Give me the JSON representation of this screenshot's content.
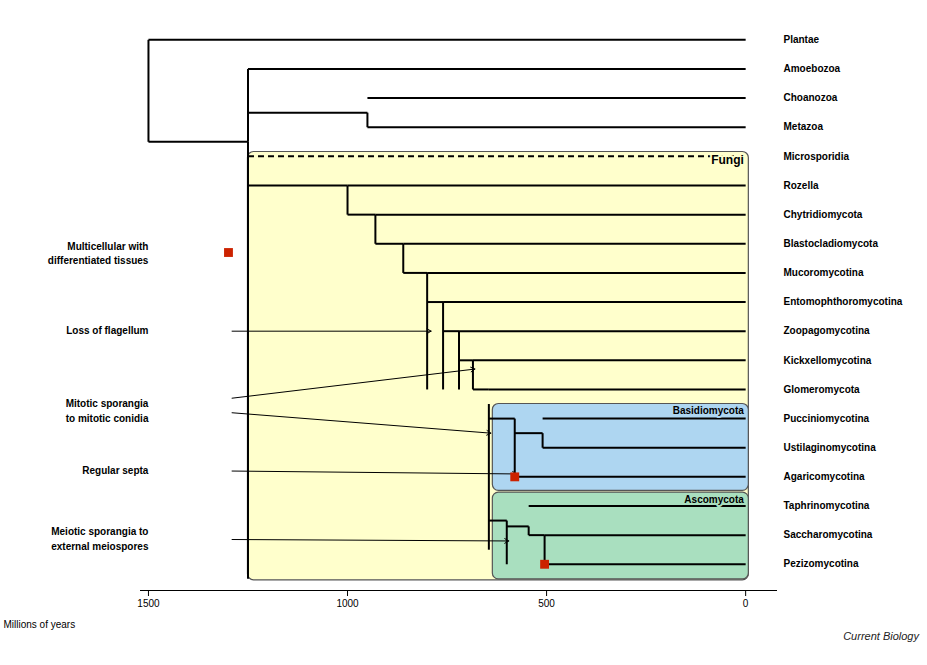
{
  "chart_data": {
    "type": "tree",
    "xlabel": "Millions of years",
    "caption": "Current Biology",
    "xlim": [
      -1520,
      80
    ],
    "xticks": [
      {
        "value": -1500,
        "label": "1500"
      },
      {
        "value": -1000,
        "label": "1000"
      },
      {
        "value": -500,
        "label": "500"
      },
      0
    ],
    "ylim": [
      -0.9,
      18.8
    ],
    "tick_labels": "x",
    "grid": false,
    "categories": [
      "Plantae",
      "Amoebozoa",
      "Choanozoa",
      "Metazoa",
      "Microsporidia",
      "Rozella",
      "Chytridiomycota",
      "Blastocladiomycota",
      "Mucoromycotina",
      "Entomophthoromycotina",
      "Zoopagomycotina",
      "Kickxellomycotina",
      "Glomeromycota",
      "Pucciniomycotina",
      "Ustilaginomycotina",
      "Agaricomycotina",
      "Taphrinomycotina",
      "Saccharomycotina",
      "Pezizomycotina"
    ],
    "y": [
      18,
      17,
      16,
      15,
      14,
      13,
      12,
      11,
      10,
      9,
      8,
      7,
      6,
      5,
      4,
      3,
      2,
      1,
      0
    ],
    "groups": [
      {
        "name": "Fungi",
        "color": "#ffffcc",
        "x1": -1250,
        "x2": 8,
        "y1": -0.55,
        "y2": 14.15
      },
      {
        "name": "Basidiomycota",
        "color": "#aed6f1",
        "x1": -635,
        "x2": 8,
        "y1": 2.52,
        "y2": 5.5
      },
      {
        "name": "Ascomycota",
        "color": "#a9dfbf",
        "x1": -635,
        "x2": 8,
        "y1": -0.52,
        "y2": 2.46
      }
    ],
    "branches": [
      {
        "x1": -1500,
        "x2": -1500,
        "y1": 14.5,
        "y2": 18
      },
      {
        "x1": -1500,
        "x2": 0,
        "y1": 18,
        "y2": 18
      },
      {
        "x1": -1500,
        "x2": -1250,
        "y1": 14.5,
        "y2": 14.5
      },
      {
        "x1": -1250,
        "x2": -1250,
        "y1": 14.5,
        "y2": 17
      },
      {
        "x1": -1250,
        "x2": 0,
        "y1": 17,
        "y2": 17
      },
      {
        "x1": -1250,
        "x2": -950,
        "y1": 15.5,
        "y2": 15.5
      },
      {
        "x1": -950,
        "x2": -950,
        "y1": 15,
        "y2": 15.5
      },
      {
        "x1": -950,
        "x2": 0,
        "y1": 16,
        "y2": 16
      },
      {
        "x1": -950,
        "x2": 0,
        "y1": 15,
        "y2": 15
      },
      {
        "x1": -1250,
        "x2": -1250,
        "y1": -0.5,
        "y2": 14.5
      },
      {
        "x1": -1250,
        "x2": 0,
        "y1": 14,
        "y2": 14,
        "line_style": "dashed"
      },
      {
        "x1": -1250,
        "x2": -1000,
        "y1": 13,
        "y2": 13
      },
      {
        "x1": -1000,
        "x2": -1000,
        "y1": 12,
        "y2": 13
      },
      {
        "x1": -1000,
        "x2": 0,
        "y1": 13,
        "y2": 13
      },
      {
        "x1": -1000,
        "x2": -930,
        "y1": 12,
        "y2": 12
      },
      {
        "x1": -930,
        "x2": -930,
        "y1": 11,
        "y2": 12
      },
      {
        "x1": -930,
        "x2": 0,
        "y1": 12,
        "y2": 12
      },
      {
        "x1": -930,
        "x2": -860,
        "y1": 11,
        "y2": 11
      },
      {
        "x1": -860,
        "x2": -860,
        "y1": 10,
        "y2": 11
      },
      {
        "x1": -860,
        "x2": 0,
        "y1": 11,
        "y2": 11
      },
      {
        "x1": -860,
        "x2": -800,
        "y1": 10,
        "y2": 10
      },
      {
        "x1": -800,
        "x2": -800,
        "y1": 6,
        "y2": 10
      },
      {
        "x1": -800,
        "x2": 0,
        "y1": 10,
        "y2": 10
      },
      {
        "x1": -800,
        "x2": -760,
        "y1": 9,
        "y2": 9
      },
      {
        "x1": -760,
        "x2": -760,
        "y1": 6,
        "y2": 9
      },
      {
        "x1": -760,
        "x2": 0,
        "y1": 9,
        "y2": 9
      },
      {
        "x1": -760,
        "x2": -720,
        "y1": 8,
        "y2": 8
      },
      {
        "x1": -720,
        "x2": -720,
        "y1": 6,
        "y2": 8
      },
      {
        "x1": -720,
        "x2": 0,
        "y1": 8,
        "y2": 8
      },
      {
        "x1": -720,
        "x2": -685,
        "y1": 7,
        "y2": 7
      },
      {
        "x1": -685,
        "x2": -685,
        "y1": 6,
        "y2": 7
      },
      {
        "x1": -685,
        "x2": 0,
        "y1": 7,
        "y2": 7
      },
      {
        "x1": -685,
        "x2": -645,
        "y1": 6,
        "y2": 6
      },
      {
        "x1": -645,
        "x2": 0,
        "y1": 6,
        "y2": 6
      },
      {
        "x1": -645,
        "x2": -645,
        "y1": 0.5,
        "y2": 5.5
      },
      {
        "x1": -645,
        "x2": -580,
        "y1": 5,
        "y2": 5
      },
      {
        "x1": -580,
        "x2": -580,
        "y1": 3,
        "y2": 5
      },
      {
        "x1": -580,
        "x2": -510,
        "y1": 4.5,
        "y2": 4.5
      },
      {
        "x1": -510,
        "x2": -510,
        "y1": 4,
        "y2": 4.5
      },
      {
        "x1": -510,
        "x2": 0,
        "y1": 5,
        "y2": 5
      },
      {
        "x1": -510,
        "x2": 0,
        "y1": 4,
        "y2": 4
      },
      {
        "x1": -580,
        "x2": 0,
        "y1": 3,
        "y2": 3
      },
      {
        "x1": -645,
        "x2": -600,
        "y1": 1.5,
        "y2": 1.5
      },
      {
        "x1": -600,
        "x2": -600,
        "y1": 0,
        "y2": 1.5
      },
      {
        "x1": -600,
        "x2": -545,
        "y1": 1.3,
        "y2": 1.3
      },
      {
        "x1": -545,
        "x2": -545,
        "y1": 1,
        "y2": 1.3
      },
      {
        "x1": -545,
        "x2": 0,
        "y1": 2,
        "y2": 2
      },
      {
        "x1": -545,
        "x2": -505,
        "y1": 1,
        "y2": 1
      },
      {
        "x1": -505,
        "x2": -505,
        "y1": 0,
        "y2": 1
      },
      {
        "x1": -505,
        "x2": 0,
        "y1": 1,
        "y2": 1
      },
      {
        "x1": -505,
        "x2": 0,
        "y1": 0,
        "y2": 0
      }
    ],
    "markers": {
      "color": "#cc2200",
      "marker": "square",
      "points": [
        {
          "x": -580,
          "y": 3
        },
        {
          "x": -505,
          "y": 0
        },
        {
          "x": -1299,
          "y": 10.7
        }
      ]
    },
    "annotations": [
      {
        "text": "Multicellular with",
        "x": -1490,
        "y": 10.9
      },
      {
        "text": "differentiated tissues",
        "x": -1490,
        "y": 10.4
      },
      {
        "text": "Loss of flagellum",
        "x": -1490,
        "y": 8.0
      },
      {
        "text": "Mitotic sporangia",
        "x": -1490,
        "y": 5.5
      },
      {
        "text": "to mitotic conidia",
        "x": -1490,
        "y": 5.0
      },
      {
        "text": "Regular septa",
        "x": -1490,
        "y": 3.2
      },
      {
        "text": "Meiotic sporangia to",
        "x": -1490,
        "y": 1.1
      },
      {
        "text": "external meiospores",
        "x": -1490,
        "y": 0.6
      }
    ],
    "arrows": [
      {
        "x1": -1290,
        "y1": 8.0,
        "x2": -790,
        "y2": 8.0
      },
      {
        "x1": -1290,
        "y1": 5.7,
        "x2": -680,
        "y2": 6.7
      },
      {
        "x1": -1290,
        "y1": 5.2,
        "x2": -640,
        "y2": 4.5
      },
      {
        "x1": -1290,
        "y1": 3.2,
        "x2": -575,
        "y2": 3.1
      },
      {
        "x1": -1290,
        "y1": 0.85,
        "x2": -595,
        "y2": 0.8
      }
    ]
  }
}
